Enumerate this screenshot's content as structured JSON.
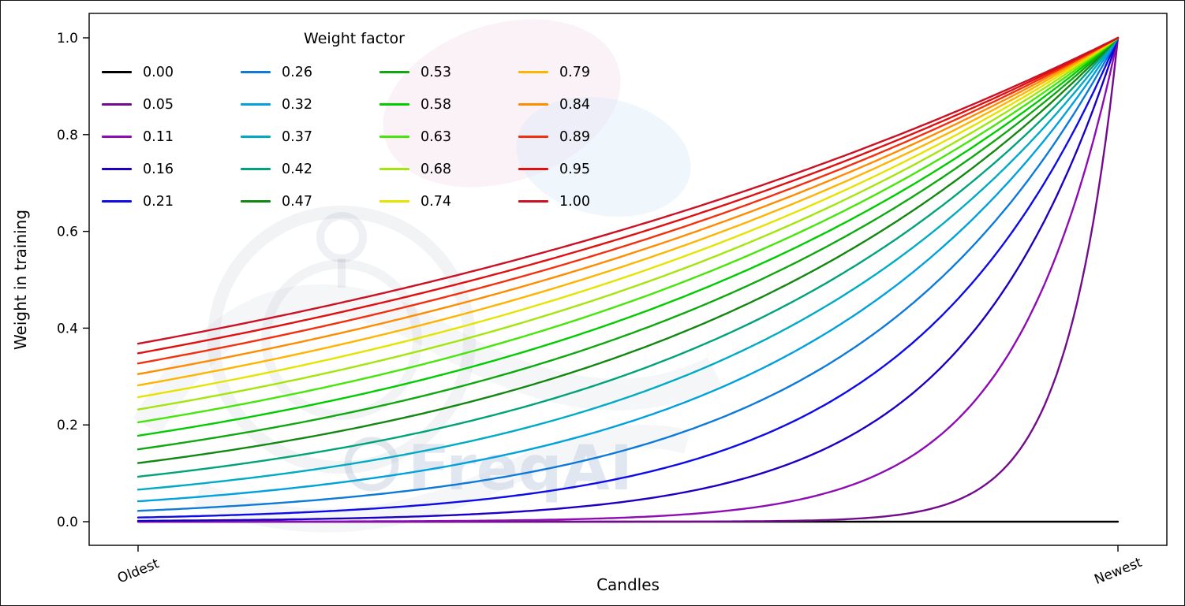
{
  "figure": {
    "background": "#ffffff",
    "border_color": "#161616"
  },
  "watermark": {
    "text": "FreqAI"
  },
  "chart_data": {
    "type": "line",
    "title": "",
    "legend_title": "Weight factor",
    "legend_position": "upper left",
    "legend_columns": 4,
    "legend_rows": 5,
    "xlabel": "Candles",
    "ylabel": "Weight in training",
    "x_range": [
      0,
      1
    ],
    "x_tick_labels": [
      "Oldest",
      "Newest"
    ],
    "y_ticks": [
      0.0,
      0.2,
      0.4,
      0.6,
      0.8,
      1.0
    ],
    "y_tick_labels": [
      "0.0",
      "0.2",
      "0.4",
      "0.6",
      "0.8",
      "1.0"
    ],
    "ylim": [
      0,
      1
    ],
    "grid": false,
    "curve_formula": "weight(t) = exp(-(1 - t) / factor) for factor > 0; factor = 0 gives weight 0 for all but the newest candle (weight 1)",
    "series": [
      {
        "label": "0.00",
        "factor": 0.0,
        "color": "#000000"
      },
      {
        "label": "0.05",
        "factor": 0.0526,
        "color": "#730c8c"
      },
      {
        "label": "0.11",
        "factor": 0.1053,
        "color": "#8e0cb4"
      },
      {
        "label": "0.16",
        "factor": 0.1579,
        "color": "#1b00c3"
      },
      {
        "label": "0.21",
        "factor": 0.2105,
        "color": "#0d0ce8"
      },
      {
        "label": "0.26",
        "factor": 0.2632,
        "color": "#0d7ad9"
      },
      {
        "label": "0.32",
        "factor": 0.3158,
        "color": "#00a1dc"
      },
      {
        "label": "0.37",
        "factor": 0.3684,
        "color": "#00abc3"
      },
      {
        "label": "0.42",
        "factor": 0.4211,
        "color": "#00a37a"
      },
      {
        "label": "0.47",
        "factor": 0.4737,
        "color": "#128712"
      },
      {
        "label": "0.53",
        "factor": 0.5263,
        "color": "#0fa80f"
      },
      {
        "label": "0.58",
        "factor": 0.5789,
        "color": "#00cc00"
      },
      {
        "label": "0.63",
        "factor": 0.6316,
        "color": "#46e60b"
      },
      {
        "label": "0.68",
        "factor": 0.6842,
        "color": "#a3e60e"
      },
      {
        "label": "0.74",
        "factor": 0.7368,
        "color": "#e6e300"
      },
      {
        "label": "0.79",
        "factor": 0.7895,
        "color": "#ffb400"
      },
      {
        "label": "0.84",
        "factor": 0.8421,
        "color": "#ff8c00"
      },
      {
        "label": "0.89",
        "factor": 0.8947,
        "color": "#f2300e"
      },
      {
        "label": "0.95",
        "factor": 0.9474,
        "color": "#e01010"
      },
      {
        "label": "1.00",
        "factor": 1.0,
        "color": "#cc1124"
      }
    ]
  }
}
